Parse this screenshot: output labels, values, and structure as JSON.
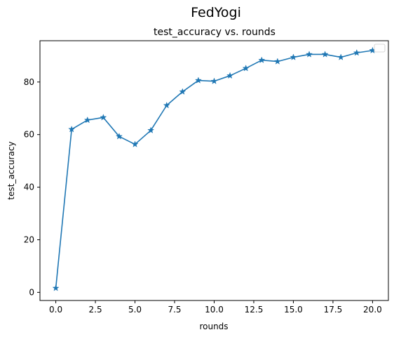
{
  "chart_data": {
    "type": "line",
    "suptitle": "FedYogi",
    "title": "test_accuracy vs. rounds",
    "xlabel": "rounds",
    "ylabel": "test_accuracy",
    "xlim": [
      -1.0,
      21.0
    ],
    "ylim": [
      -3.1,
      95.7
    ],
    "xticks": [
      0.0,
      2.5,
      5.0,
      7.5,
      10.0,
      12.5,
      15.0,
      17.5,
      20.0
    ],
    "xtick_labels": [
      "0.0",
      "2.5",
      "5.0",
      "7.5",
      "10.0",
      "12.5",
      "15.0",
      "17.5",
      "20.0"
    ],
    "yticks": [
      0,
      20,
      40,
      60,
      80
    ],
    "ytick_labels": [
      "0",
      "20",
      "40",
      "60",
      "80"
    ],
    "grid": false,
    "legend": "upper right (empty)",
    "series": [
      {
        "color": "#1f77b4",
        "marker": "star",
        "x": [
          0,
          1,
          2,
          3,
          4,
          5,
          6,
          7,
          8,
          9,
          10,
          11,
          12,
          13,
          14,
          15,
          16,
          17,
          18,
          19,
          20
        ],
        "values": [
          1.6,
          62.0,
          65.5,
          66.5,
          59.3,
          56.3,
          61.6,
          71.1,
          76.3,
          80.6,
          80.3,
          82.4,
          85.2,
          88.3,
          87.8,
          89.4,
          90.5,
          90.5,
          89.4,
          91.1,
          92.0
        ]
      }
    ]
  }
}
